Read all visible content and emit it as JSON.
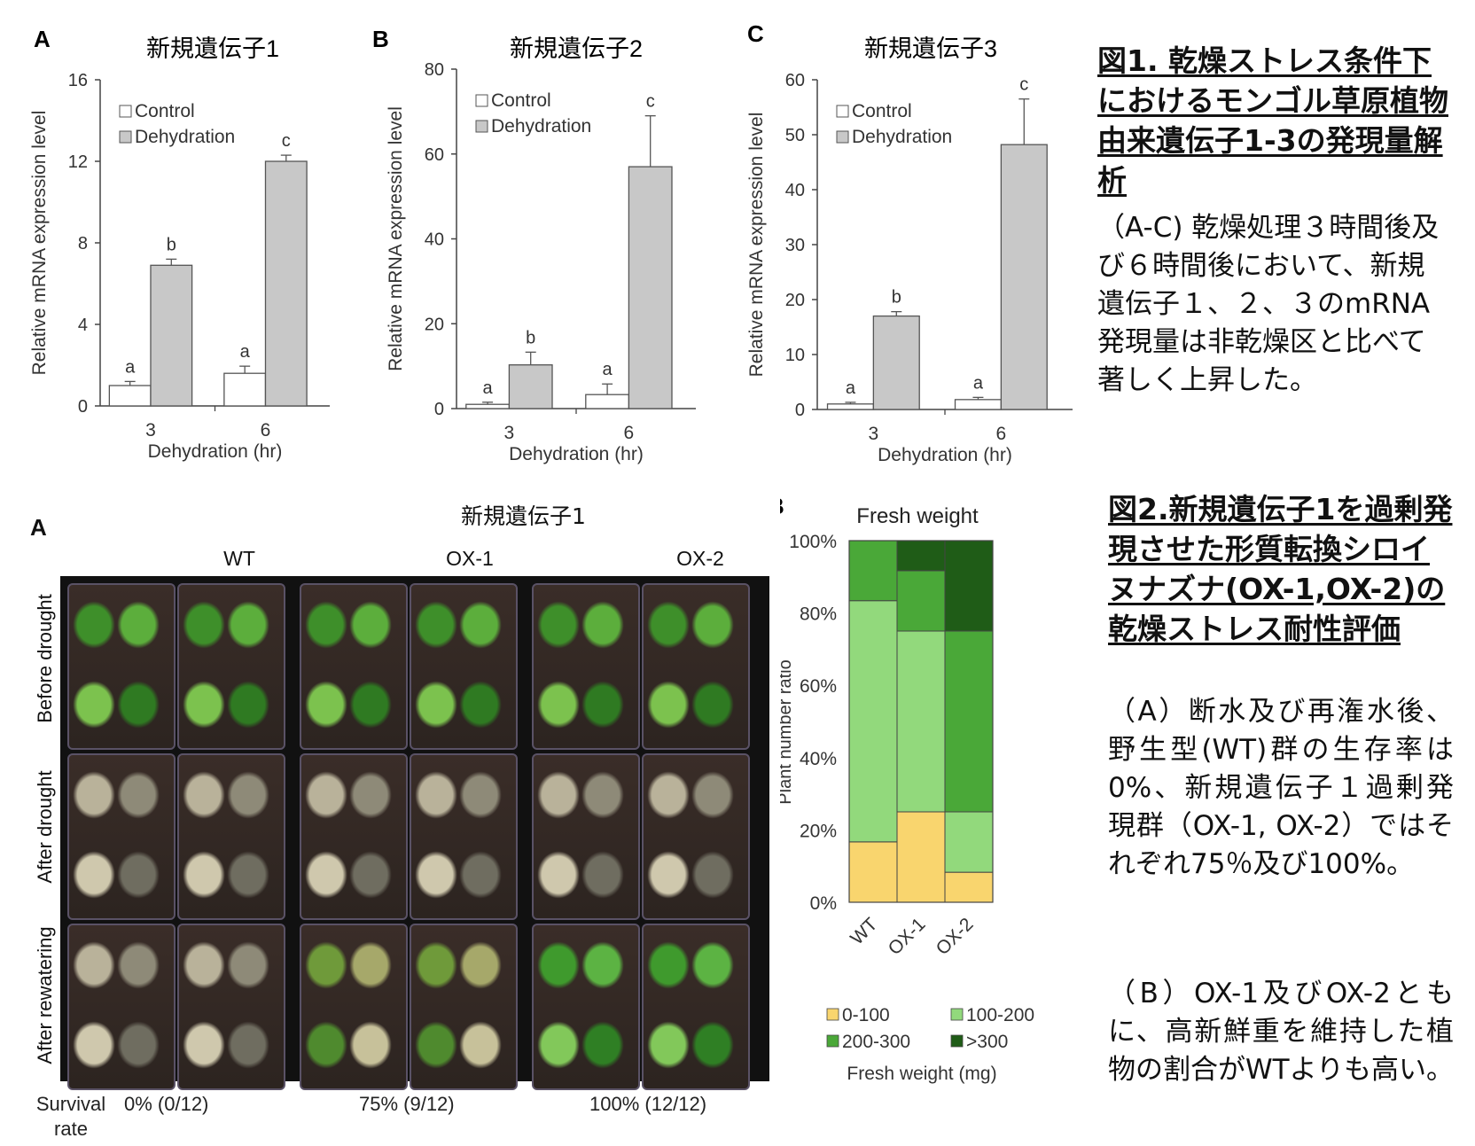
{
  "figure1": {
    "charts": [
      {
        "panel": "A",
        "title": "新規遺伝子1",
        "ylabel": "Relative mRNA expression level",
        "xlabel": "Dehydration (hr)",
        "legend": [
          "Control",
          "Dehydration"
        ],
        "chart_data": {
          "type": "bar",
          "categories": [
            "3",
            "6"
          ],
          "series": [
            {
              "name": "Control",
              "values": [
                1.0,
                1.6
              ],
              "errors": [
                0.2,
                0.35
              ]
            },
            {
              "name": "Dehydration",
              "values": [
                6.9,
                12.0
              ],
              "errors": [
                0.3,
                0.3
              ]
            }
          ],
          "letters": [
            [
              "a",
              "b"
            ],
            [
              "a",
              "c"
            ]
          ],
          "ylim": [
            0,
            16
          ],
          "yticks": [
            "0",
            "4",
            "8",
            "12",
            "16"
          ]
        }
      },
      {
        "panel": "B",
        "title": "新規遺伝子2",
        "ylabel": "Relative mRNA expression level",
        "xlabel": "Dehydration (hr)",
        "legend": [
          "Control",
          "Dehydration"
        ],
        "chart_data": {
          "type": "bar",
          "categories": [
            "3",
            "6"
          ],
          "series": [
            {
              "name": "Control",
              "values": [
                1.0,
                3.3
              ],
              "errors": [
                0.5,
                2.5
              ]
            },
            {
              "name": "Dehydration",
              "values": [
                10.3,
                57.0
              ],
              "errors": [
                3.0,
                12.0
              ]
            }
          ],
          "letters": [
            [
              "a",
              "b"
            ],
            [
              "a",
              "c"
            ]
          ],
          "ylim": [
            0,
            80
          ],
          "yticks": [
            "0",
            "20",
            "40",
            "60",
            "80"
          ]
        }
      },
      {
        "panel": "C",
        "title": "新規遺伝子3",
        "ylabel": "Relative mRNA expression level",
        "xlabel": "Dehydration (hr)",
        "legend": [
          "Control",
          "Dehydration"
        ],
        "chart_data": {
          "type": "bar",
          "categories": [
            "3",
            "6"
          ],
          "series": [
            {
              "name": "Control",
              "values": [
                1.0,
                1.8
              ],
              "errors": [
                0.3,
                0.4
              ]
            },
            {
              "name": "Dehydration",
              "values": [
                17.0,
                48.2
              ],
              "errors": [
                0.8,
                8.3
              ]
            }
          ],
          "letters": [
            [
              "a",
              "b"
            ],
            [
              "a",
              "c"
            ]
          ],
          "ylim": [
            0,
            60
          ],
          "yticks": [
            "0",
            "10",
            "20",
            "30",
            "40",
            "50",
            "60"
          ]
        }
      }
    ],
    "caption_title": "図1. 乾燥ストレス条件下におけるモンゴル草原植物由来遺伝子1-3の発現量解析",
    "caption_body": "（A-C) 乾燥処理３時間後及び６時間後において、新規遺伝子１、２、３のmRNA発現量は非乾燥区と比べて著しく上昇した。"
  },
  "figure2": {
    "panel_a": {
      "letter": "A",
      "title": "新規遺伝子1",
      "columns": [
        "WT",
        "OX-1",
        "OX-2"
      ],
      "rows": [
        "Before drought",
        "After drought",
        "After rewatering"
      ],
      "survival_label": "Survival rate",
      "survival_rates": [
        "0% (0/12)",
        "75% (9/12)",
        "100% (12/12)"
      ]
    },
    "panel_b": {
      "letter": "B",
      "title": "Fresh weight",
      "ylabel": "Plant number ratio",
      "xlabel": "Fresh weight (mg)",
      "chart_data": {
        "type": "bar",
        "stacked": true,
        "categories": [
          "WT",
          "OX-1",
          "OX-2"
        ],
        "series": [
          {
            "name": "0-100",
            "values": [
              16.7,
              25.0,
              8.3
            ],
            "color": "#f9d56e"
          },
          {
            "name": "100-200",
            "values": [
              66.7,
              50.0,
              16.7
            ],
            "color": "#92d97c"
          },
          {
            "name": "200-300",
            "values": [
              16.6,
              16.7,
              50.0
            ],
            "color": "#4aa838"
          },
          {
            "name": ">300",
            "values": [
              0,
              8.3,
              25.0
            ],
            "color": "#1f5c17"
          }
        ],
        "ylim": [
          0,
          100
        ],
        "yticks": [
          "0%",
          "20%",
          "40%",
          "60%",
          "80%",
          "100%"
        ]
      }
    },
    "caption_title": "図2.新規遺伝子1を過剰発現させた形質転換シロイヌナズナ(OX-1,OX-2)の乾燥ストレス耐性評価",
    "caption_body_a": "（A）断水及び再潅水後、野生型(WT)群の生存率は0%、新規遺伝子１過剰発現群（OX-1, OX-2）ではそれぞれ75％及び100%。",
    "caption_body_b": "（B）OX-1及びOX-2ともに、高新鮮重を維持した植物の割合がWTよりも高い。"
  }
}
